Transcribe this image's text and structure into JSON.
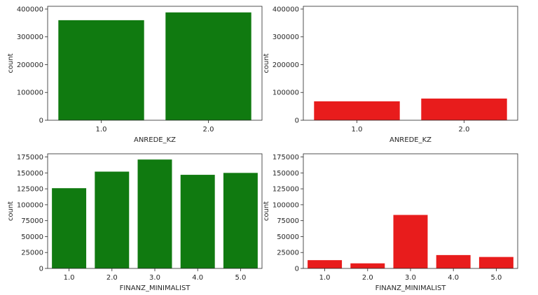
{
  "chart_data": [
    {
      "type": "bar",
      "xlabel": "ANREDE_KZ",
      "ylabel": "count",
      "categories": [
        "1.0",
        "2.0"
      ],
      "values": [
        360000,
        388000
      ],
      "ylim": [
        0,
        410000
      ],
      "yticks": [
        0,
        100000,
        200000,
        300000,
        400000
      ],
      "bar_color": "#107a10",
      "grid": false
    },
    {
      "type": "bar",
      "xlabel": "ANREDE_KZ",
      "ylabel": "count",
      "categories": [
        "1.0",
        "2.0"
      ],
      "values": [
        68000,
        78000
      ],
      "ylim": [
        0,
        410000
      ],
      "yticks": [
        0,
        100000,
        200000,
        300000,
        400000
      ],
      "bar_color": "#e81c1c",
      "grid": false
    },
    {
      "type": "bar",
      "xlabel": "FINANZ_MINIMALIST",
      "ylabel": "count",
      "categories": [
        "1.0",
        "2.0",
        "3.0",
        "4.0",
        "5.0"
      ],
      "values": [
        126000,
        152000,
        171000,
        147000,
        150000
      ],
      "ylim": [
        0,
        180000
      ],
      "yticks": [
        0,
        25000,
        50000,
        75000,
        100000,
        125000,
        150000,
        175000
      ],
      "bar_color": "#107a10",
      "grid": false
    },
    {
      "type": "bar",
      "xlabel": "FINANZ_MINIMALIST",
      "ylabel": "count",
      "categories": [
        "1.0",
        "2.0",
        "3.0",
        "4.0",
        "5.0"
      ],
      "values": [
        13000,
        8000,
        84000,
        21000,
        18000
      ],
      "ylim": [
        0,
        180000
      ],
      "yticks": [
        0,
        25000,
        50000,
        75000,
        100000,
        125000,
        150000,
        175000
      ],
      "bar_color": "#e81c1c",
      "grid": false
    }
  ]
}
